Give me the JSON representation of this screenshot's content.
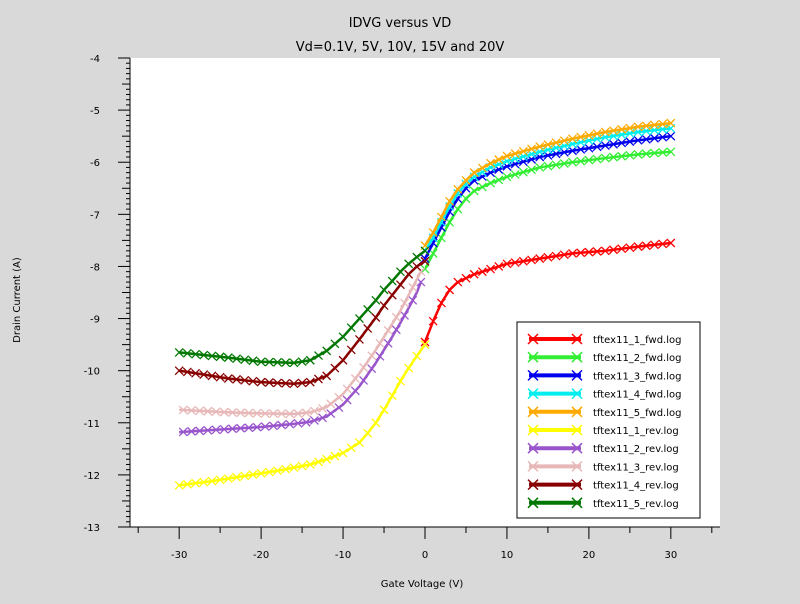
{
  "chart_data": {
    "type": "line",
    "title": "IDVG versus VD",
    "subtitle": "Vd=0.1V, 5V, 10V, 15V and 20V",
    "xlabel": "Gate Voltage (V)",
    "ylabel": "Drain Current (A)",
    "xlim": [
      -36,
      36
    ],
    "ylim": [
      -13,
      -4
    ],
    "xticks": [
      -30,
      -20,
      -10,
      0,
      10,
      20,
      30
    ],
    "yticks": [
      -13,
      -12,
      -11,
      -10,
      -9,
      -8,
      -7,
      -6,
      -5,
      -4
    ],
    "grid": false,
    "legend_position": "bottom-right",
    "marker": "x",
    "series": [
      {
        "name": "tftex11_1_fwd.log",
        "color": "#ff0000",
        "x": [
          0,
          0.5,
          1,
          2,
          3,
          4,
          6,
          8,
          10,
          14,
          18,
          22,
          26,
          30
        ],
        "y": [
          -9.45,
          -9.25,
          -9.05,
          -8.7,
          -8.45,
          -8.3,
          -8.15,
          -8.05,
          -7.95,
          -7.85,
          -7.75,
          -7.7,
          -7.62,
          -7.55
        ]
      },
      {
        "name": "tftex11_2_fwd.log",
        "color": "#33ee33",
        "x": [
          0,
          1,
          2,
          3,
          4,
          5,
          6,
          8,
          10,
          14,
          18,
          22,
          26,
          30
        ],
        "y": [
          -8.05,
          -7.75,
          -7.45,
          -7.15,
          -6.9,
          -6.7,
          -6.55,
          -6.4,
          -6.28,
          -6.1,
          -6.0,
          -5.92,
          -5.85,
          -5.8
        ]
      },
      {
        "name": "tftex11_3_fwd.log",
        "color": "#0000ee",
        "x": [
          0,
          1,
          2,
          3,
          4,
          5,
          6,
          8,
          10,
          14,
          18,
          22,
          26,
          30
        ],
        "y": [
          -7.85,
          -7.55,
          -7.25,
          -6.95,
          -6.7,
          -6.5,
          -6.35,
          -6.2,
          -6.08,
          -5.9,
          -5.78,
          -5.68,
          -5.58,
          -5.5
        ]
      },
      {
        "name": "tftex11_4_fwd.log",
        "color": "#00eeee",
        "x": [
          0,
          1,
          2,
          3,
          4,
          5,
          6,
          8,
          10,
          14,
          18,
          22,
          26,
          30
        ],
        "y": [
          -7.7,
          -7.45,
          -7.15,
          -6.85,
          -6.6,
          -6.42,
          -6.28,
          -6.1,
          -5.98,
          -5.8,
          -5.65,
          -5.52,
          -5.42,
          -5.35
        ]
      },
      {
        "name": "tftex11_5_fwd.log",
        "color": "#ffaa00",
        "x": [
          0,
          1,
          2,
          3,
          4,
          5,
          6,
          8,
          10,
          14,
          18,
          22,
          26,
          30
        ],
        "y": [
          -7.6,
          -7.35,
          -7.05,
          -6.75,
          -6.52,
          -6.35,
          -6.2,
          -6.02,
          -5.88,
          -5.7,
          -5.55,
          -5.42,
          -5.32,
          -5.25
        ]
      },
      {
        "name": "tftex11_1_rev.log",
        "color": "#ffff00",
        "x": [
          0,
          -1,
          -2,
          -3,
          -4,
          -5,
          -6,
          -7,
          -8,
          -10,
          -12,
          -14,
          -18,
          -22,
          -26,
          -30
        ],
        "y": [
          -9.5,
          -9.72,
          -9.95,
          -10.2,
          -10.48,
          -10.75,
          -11.0,
          -11.2,
          -11.38,
          -11.58,
          -11.7,
          -11.8,
          -11.92,
          -12.02,
          -12.12,
          -12.2
        ]
      },
      {
        "name": "tftex11_2_rev.log",
        "color": "#9955cc",
        "x": [
          -0.5,
          -1,
          -2,
          -3,
          -4,
          -5,
          -6,
          -8,
          -10,
          -12,
          -14,
          -16,
          -20,
          -24,
          -30
        ],
        "y": [
          -8.3,
          -8.5,
          -8.8,
          -9.08,
          -9.35,
          -9.6,
          -9.85,
          -10.3,
          -10.65,
          -10.88,
          -10.98,
          -11.02,
          -11.08,
          -11.12,
          -11.18
        ]
      },
      {
        "name": "tftex11_3_rev.log",
        "color": "#e8b8b8",
        "x": [
          -0.5,
          -1,
          -2,
          -3,
          -4,
          -5,
          -6,
          -8,
          -10,
          -12,
          -14,
          -16,
          -20,
          -24,
          -30
        ],
        "y": [
          -8.1,
          -8.25,
          -8.55,
          -8.85,
          -9.1,
          -9.35,
          -9.6,
          -10.05,
          -10.45,
          -10.7,
          -10.8,
          -10.83,
          -10.82,
          -10.8,
          -10.75
        ]
      },
      {
        "name": "tftex11_4_rev.log",
        "color": "#880000",
        "x": [
          0,
          -1,
          -2,
          -3,
          -4,
          -5,
          -6,
          -8,
          -10,
          -12,
          -14,
          -16,
          -20,
          -24,
          -30
        ],
        "y": [
          -7.9,
          -8.0,
          -8.15,
          -8.35,
          -8.55,
          -8.75,
          -8.98,
          -9.4,
          -9.8,
          -10.1,
          -10.22,
          -10.25,
          -10.22,
          -10.15,
          -10.0
        ]
      },
      {
        "name": "tftex11_5_rev.log",
        "color": "#007700",
        "x": [
          0,
          -1,
          -2,
          -3,
          -4,
          -5,
          -6,
          -8,
          -10,
          -12,
          -14,
          -16,
          -20,
          -24,
          -30
        ],
        "y": [
          -7.7,
          -7.82,
          -7.95,
          -8.1,
          -8.28,
          -8.45,
          -8.65,
          -9.0,
          -9.35,
          -9.62,
          -9.8,
          -9.85,
          -9.83,
          -9.75,
          -9.65
        ]
      }
    ]
  }
}
